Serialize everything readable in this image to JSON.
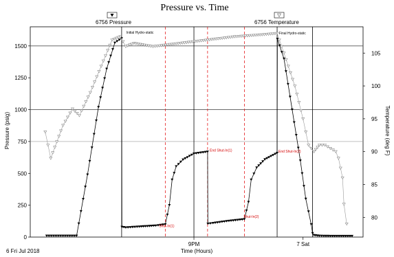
{
  "chart_data": {
    "type": "line",
    "title": "Pressure vs. Time",
    "xlabel": "Time (Hours)",
    "ylabel_left": "Pressure (psig)",
    "ylabel_right": "Temperature (deg F)",
    "x_unit": "hours",
    "xlim": [
      15.0,
      27.2
    ],
    "ylim_left": [
      0,
      1650
    ],
    "ylim_right": [
      77,
      109
    ],
    "x_ticks": [
      {
        "x": 21,
        "label": "9PM"
      },
      {
        "x": 25,
        "label": "7 Sat"
      }
    ],
    "date_label": "6 Fri Jul 2018",
    "y_ticks_left": [
      0,
      250,
      500,
      750,
      1000,
      1250,
      1500
    ],
    "y_ticks_left_labels": [
      "0",
      "250",
      "500",
      "750",
      "1000",
      "1250",
      "1500"
    ],
    "y_ticks_right": [
      80,
      85,
      90,
      95,
      100,
      105
    ],
    "y_ticks_right_labels": [
      "80",
      "85",
      "90",
      "95",
      "100",
      "105"
    ],
    "major_gridlines_left": [
      1000,
      1500
    ],
    "minor_gridlines_left": [
      750
    ],
    "vertical_lines_black": [
      18.35,
      21.0,
      24.05,
      25.35
    ],
    "vertical_lines_red_dashed": [
      19.95,
      21.5,
      22.85
    ],
    "legend": [
      {
        "name": "6756 Pressure",
        "marker": "filled-down-triangle"
      },
      {
        "name": "6756 Temperature",
        "marker": "open-down-triangle"
      }
    ],
    "annotations": [
      {
        "text": "Initial Hydro-static",
        "x": 18.52,
        "y": 1595,
        "color": "black"
      },
      {
        "text": "Final Hydro-static",
        "x": 24.12,
        "y": 1590,
        "color": "black"
      },
      {
        "text": "End Shut-In(1)",
        "x": 21.58,
        "y": 672,
        "color": "red"
      },
      {
        "text": "End Shut-In(2)",
        "x": 24.1,
        "y": 664,
        "color": "red"
      },
      {
        "text": "Shut-In(1)",
        "x": 19.72,
        "y": 78,
        "color": "red"
      },
      {
        "text": "Shut-In(2)",
        "x": 22.82,
        "y": 152,
        "color": "red"
      }
    ],
    "series": [
      {
        "name": "6756 Pressure",
        "axis": "left",
        "color": "#000000",
        "x": [
          15.6,
          16.2,
          16.7,
          17.1,
          17.5,
          17.8,
          18.1,
          18.35,
          18.36,
          18.5,
          19.0,
          19.6,
          19.95,
          20.1,
          20.2,
          20.35,
          20.6,
          21.0,
          21.5,
          21.51,
          21.7,
          22.2,
          22.85,
          23.0,
          23.1,
          23.3,
          23.6,
          24.05,
          24.06,
          24.3,
          24.6,
          24.9,
          25.1,
          25.3,
          25.35,
          25.4,
          25.6,
          26.0,
          26.8
        ],
        "y": [
          10,
          10,
          10,
          490,
          1020,
          1320,
          1525,
          1560,
          80,
          75,
          82,
          90,
          100,
          250,
          450,
          555,
          608,
          655,
          670,
          105,
          110,
          125,
          140,
          275,
          450,
          545,
          610,
          660,
          1555,
          1400,
          1000,
          600,
          300,
          100,
          30,
          15,
          10,
          8,
          8
        ]
      },
      {
        "name": "6756 Temperature",
        "axis": "right",
        "color": "#808080",
        "x": [
          15.55,
          15.75,
          16.2,
          16.55,
          16.8,
          17.2,
          17.6,
          18.0,
          18.3,
          18.5,
          18.8,
          19.5,
          20.5,
          21.5,
          22.5,
          23.5,
          24.05,
          24.3,
          24.7,
          25.0,
          25.2,
          25.4,
          25.6,
          25.8,
          26.0,
          26.2,
          26.3,
          26.45,
          26.5,
          26.6
        ],
        "y": [
          93,
          89,
          94,
          96.5,
          95.5,
          99,
          103,
          107,
          107.5,
          106,
          106.5,
          106,
          106.5,
          107,
          107.5,
          107.8,
          108,
          105,
          100,
          95,
          91,
          90,
          91,
          91,
          90.5,
          90,
          89,
          86,
          82,
          79
        ]
      }
    ]
  }
}
